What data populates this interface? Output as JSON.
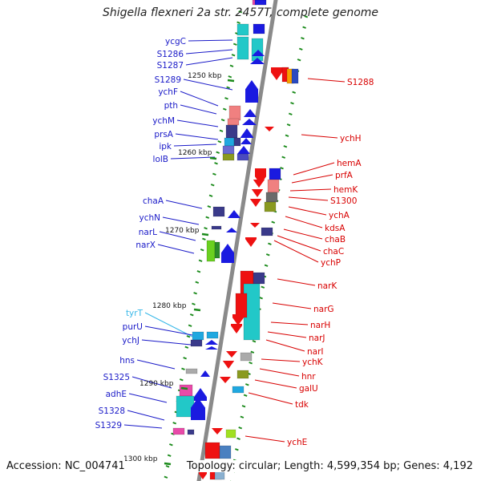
{
  "title": "Shigella flexneri 2a str. 2457T, complete genome",
  "footer": {
    "accession": "Accession: NC_004741",
    "summary": "Topology: circular; Length: 4,599,354 bp; Genes: 4,192"
  },
  "colors": {
    "backbone": "#8a8a8a",
    "left_label": "#1a1ac8",
    "right_label": "#d80000",
    "trna_label": "#38b8e8",
    "forward_arrow": "#1a1ae0",
    "reverse_arrow": "#ee1111",
    "tick": "#1a8a1a"
  },
  "scale_ticks": [
    {
      "label": "1250 kbp"
    },
    {
      "label": "1260 kbp"
    },
    {
      "label": "1270 kbp"
    },
    {
      "label": "1280 kbp"
    },
    {
      "label": "1290 kbp"
    },
    {
      "label": "1300 kbp"
    }
  ],
  "left_genes": [
    {
      "name": "ycgC"
    },
    {
      "name": "S1286"
    },
    {
      "name": "S1287"
    },
    {
      "name": "S1289"
    },
    {
      "name": "ychF"
    },
    {
      "name": "pth"
    },
    {
      "name": "ychM"
    },
    {
      "name": "prsA"
    },
    {
      "name": "ipk"
    },
    {
      "name": "lolB"
    },
    {
      "name": "chaA"
    },
    {
      "name": "ychN"
    },
    {
      "name": "narL"
    },
    {
      "name": "narX"
    },
    {
      "name": "tyrT"
    },
    {
      "name": "purU"
    },
    {
      "name": "ychJ"
    },
    {
      "name": "hns"
    },
    {
      "name": "S1325"
    },
    {
      "name": "adhE"
    },
    {
      "name": "S1328"
    },
    {
      "name": "S1329"
    }
  ],
  "right_genes": [
    {
      "name": "S1288"
    },
    {
      "name": "ychH"
    },
    {
      "name": "hemA"
    },
    {
      "name": "prfA"
    },
    {
      "name": "hemK"
    },
    {
      "name": "S1300"
    },
    {
      "name": "ychA"
    },
    {
      "name": "kdsA"
    },
    {
      "name": "chaB"
    },
    {
      "name": "chaC"
    },
    {
      "name": "ychP"
    },
    {
      "name": "narK"
    },
    {
      "name": "narG"
    },
    {
      "name": "narH"
    },
    {
      "name": "narJ"
    },
    {
      "name": "narI"
    },
    {
      "name": "ychK"
    },
    {
      "name": "hnr"
    },
    {
      "name": "galU"
    },
    {
      "name": "tdk"
    },
    {
      "name": "ychE"
    }
  ]
}
